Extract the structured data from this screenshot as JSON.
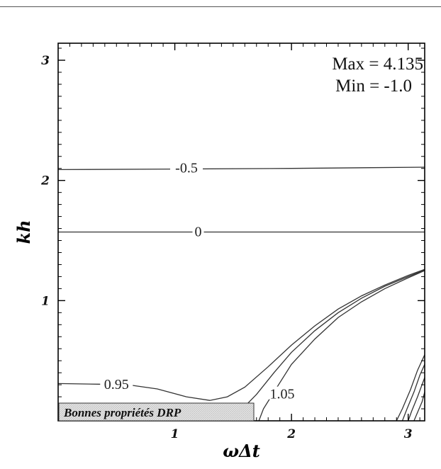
{
  "chart_data": {
    "type": "contour",
    "xlabel": "ωΔt",
    "ylabel": "kh",
    "xlim": [
      0,
      3.1416
    ],
    "ylim": [
      0,
      3.1416
    ],
    "x_ticks": [
      {
        "value": 1,
        "label": "1"
      },
      {
        "value": 2,
        "label": "2"
      },
      {
        "value": 3,
        "label": "3"
      }
    ],
    "y_ticks": [
      {
        "value": 1,
        "label": "1"
      },
      {
        "value": 2,
        "label": "2"
      },
      {
        "value": 3,
        "label": "3"
      }
    ],
    "stats": {
      "max_label": "Max = 4.135",
      "min_label": "Min = -1.0"
    },
    "region_label": "Bonnes propriétés DRP",
    "contours": [
      {
        "label": "-0.5",
        "label_at": [
          1.1,
          2.1
        ],
        "points": [
          [
            0,
            2.09
          ],
          [
            1.0,
            2.095
          ],
          [
            2.0,
            2.1
          ],
          [
            3.1416,
            2.11
          ]
        ]
      },
      {
        "label": "0",
        "label_at": [
          1.2,
          1.5708
        ],
        "points": [
          [
            0,
            1.5708
          ],
          [
            1.5,
            1.5708
          ],
          [
            3.1416,
            1.5708
          ]
        ]
      },
      {
        "label": "0.95",
        "label_at": [
          0.5,
          0.3
        ],
        "points": [
          [
            0,
            0.31
          ],
          [
            0.35,
            0.305
          ],
          [
            0.6,
            0.3
          ],
          [
            0.85,
            0.265
          ],
          [
            1.1,
            0.2
          ],
          [
            1.3,
            0.17
          ],
          [
            1.45,
            0.2
          ],
          [
            1.6,
            0.28
          ],
          [
            1.8,
            0.45
          ],
          [
            2.0,
            0.63
          ],
          [
            2.2,
            0.79
          ],
          [
            2.4,
            0.93
          ],
          [
            2.6,
            1.04
          ],
          [
            2.8,
            1.13
          ],
          [
            3.0,
            1.21
          ],
          [
            3.1416,
            1.26
          ]
        ]
      },
      {
        "label": "",
        "points": [
          [
            1.6,
            0.12
          ],
          [
            1.7,
            0.22
          ],
          [
            1.85,
            0.4
          ],
          [
            2.0,
            0.57
          ],
          [
            2.2,
            0.75
          ],
          [
            2.4,
            0.9
          ],
          [
            2.6,
            1.02
          ],
          [
            2.8,
            1.12
          ],
          [
            3.0,
            1.2
          ],
          [
            3.1416,
            1.255
          ]
        ]
      },
      {
        "label": "1.05",
        "label_at": [
          1.92,
          0.22
        ],
        "points": [
          [
            1.72,
            0.0
          ],
          [
            1.76,
            0.1
          ],
          [
            1.85,
            0.24
          ],
          [
            2.0,
            0.47
          ],
          [
            2.2,
            0.68
          ],
          [
            2.4,
            0.86
          ],
          [
            2.6,
            0.99
          ],
          [
            2.8,
            1.1
          ],
          [
            3.0,
            1.19
          ],
          [
            3.1416,
            1.25
          ]
        ]
      },
      {
        "label": "",
        "points": [
          [
            2.9,
            0.0
          ],
          [
            2.95,
            0.1
          ],
          [
            3.02,
            0.26
          ],
          [
            3.08,
            0.42
          ],
          [
            3.1416,
            0.55
          ]
        ]
      },
      {
        "label": "",
        "points": [
          [
            2.95,
            0.0
          ],
          [
            2.99,
            0.1
          ],
          [
            3.05,
            0.24
          ],
          [
            3.1,
            0.38
          ],
          [
            3.1416,
            0.47
          ]
        ]
      },
      {
        "label": "",
        "points": [
          [
            3.0,
            0.0
          ],
          [
            3.03,
            0.08
          ],
          [
            3.08,
            0.2
          ],
          [
            3.1416,
            0.36
          ]
        ]
      },
      {
        "label": "",
        "points": [
          [
            3.05,
            0.0
          ],
          [
            3.08,
            0.07
          ],
          [
            3.12,
            0.16
          ],
          [
            3.1416,
            0.24
          ]
        ]
      }
    ]
  }
}
